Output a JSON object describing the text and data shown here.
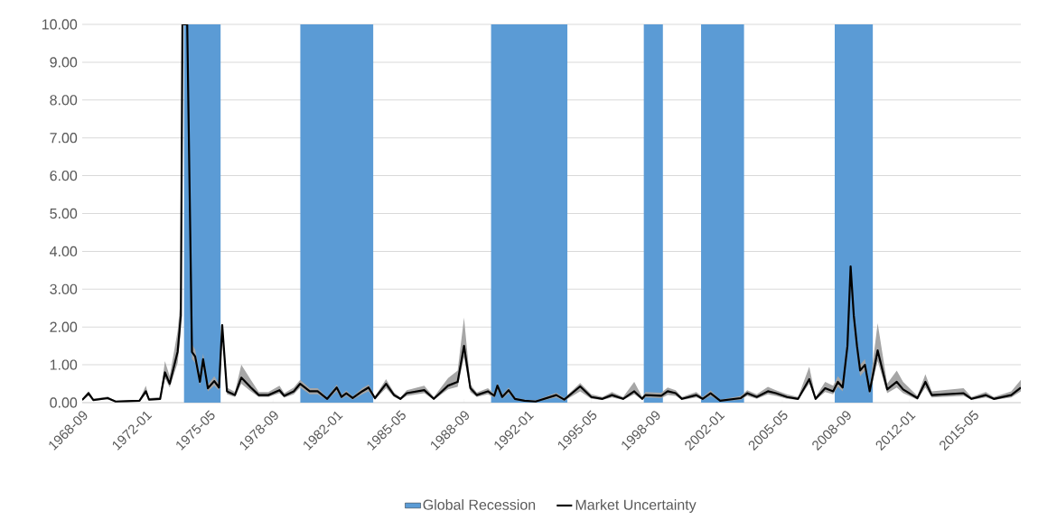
{
  "chart_data": {
    "type": "line",
    "x": [
      "1968-09",
      "1969-01",
      "1969-04",
      "1970-01",
      "1970-06",
      "1971-01",
      "1971-09",
      "1972-01",
      "1972-03",
      "1972-10",
      "1973-01",
      "1973-04",
      "1973-09",
      "1973-11",
      "1973-12",
      "1974-03",
      "1974-06",
      "1974-08",
      "1974-11",
      "1975-01",
      "1975-04",
      "1975-08",
      "1975-11",
      "1976-01",
      "1976-04",
      "1976-09",
      "1977-01",
      "1977-07",
      "1977-12",
      "1978-06",
      "1979-01",
      "1979-04",
      "1979-10",
      "1980-02",
      "1980-08",
      "1981-01",
      "1981-07",
      "1982-01",
      "1982-04",
      "1982-07",
      "1982-11",
      "1983-05",
      "1983-09",
      "1984-01",
      "1984-08",
      "1985-01",
      "1985-05",
      "1985-09",
      "1986-08",
      "1987-02",
      "1987-11",
      "1988-05",
      "1988-09",
      "1989-01",
      "1989-05",
      "1989-12",
      "1990-04",
      "1990-06",
      "1990-09",
      "1991-01",
      "1991-05",
      "1991-11",
      "1992-06",
      "1993-07",
      "1993-12",
      "1994-10",
      "1995-05",
      "1995-12",
      "1996-06",
      "1997-01",
      "1997-08",
      "1998-01",
      "1998-03",
      "1999-01",
      "1999-05",
      "1999-10",
      "2000-02",
      "2000-11",
      "2001-03",
      "2001-08",
      "2002-02",
      "2003-03",
      "2003-07",
      "2004-01",
      "2004-08",
      "2005-01",
      "2005-08",
      "2006-03",
      "2006-10",
      "2007-02",
      "2007-08",
      "2008-01",
      "2008-04",
      "2008-07",
      "2008-10",
      "2008-12",
      "2009-02",
      "2009-04",
      "2009-06",
      "2009-09",
      "2009-12",
      "2010-05",
      "2010-11",
      "2011-05",
      "2011-09",
      "2012-06",
      "2012-11",
      "2013-03",
      "2014-11",
      "2015-04",
      "2016-01",
      "2016-06",
      "2017-05",
      "2017-11"
    ],
    "series": [
      {
        "name": "Market Uncertainty",
        "color": "#000000",
        "values": [
          0.07,
          0.25,
          0.07,
          0.12,
          0.03,
          0.04,
          0.05,
          0.3,
          0.08,
          0.1,
          0.8,
          0.5,
          1.35,
          2.3,
          10,
          10,
          1.34,
          1.22,
          0.55,
          1.15,
          0.38,
          0.57,
          0.4,
          2.05,
          0.3,
          0.2,
          0.66,
          0.4,
          0.2,
          0.2,
          0.33,
          0.18,
          0.3,
          0.5,
          0.3,
          0.3,
          0.1,
          0.4,
          0.15,
          0.25,
          0.12,
          0.3,
          0.4,
          0.12,
          0.5,
          0.2,
          0.1,
          0.25,
          0.33,
          0.1,
          0.45,
          0.55,
          1.5,
          0.38,
          0.2,
          0.3,
          0.18,
          0.45,
          0.15,
          0.33,
          0.1,
          0.05,
          0.03,
          0.2,
          0.08,
          0.43,
          0.15,
          0.1,
          0.2,
          0.1,
          0.3,
          0.1,
          0.2,
          0.18,
          0.3,
          0.25,
          0.1,
          0.2,
          0.1,
          0.25,
          0.05,
          0.12,
          0.25,
          0.15,
          0.3,
          0.25,
          0.15,
          0.1,
          0.62,
          0.1,
          0.38,
          0.3,
          0.55,
          0.4,
          1.5,
          3.6,
          2.3,
          1.5,
          0.85,
          1.0,
          0.3,
          1.38,
          0.35,
          0.55,
          0.35,
          0.12,
          0.55,
          0.2,
          0.25,
          0.1,
          0.2,
          0.1,
          0.2,
          0.4
        ],
        "lower": [
          0.05,
          0.18,
          0.05,
          0.09,
          0.02,
          0.03,
          0.03,
          0.22,
          0.06,
          0.07,
          0.65,
          0.4,
          1.05,
          1.9,
          10,
          10,
          1.15,
          1.05,
          0.45,
          0.95,
          0.3,
          0.45,
          0.32,
          1.8,
          0.22,
          0.15,
          0.5,
          0.3,
          0.15,
          0.15,
          0.25,
          0.13,
          0.22,
          0.4,
          0.22,
          0.22,
          0.07,
          0.3,
          0.1,
          0.18,
          0.08,
          0.22,
          0.3,
          0.08,
          0.38,
          0.15,
          0.07,
          0.18,
          0.25,
          0.07,
          0.35,
          0.42,
          1.2,
          0.28,
          0.15,
          0.22,
          0.13,
          0.35,
          0.1,
          0.25,
          0.07,
          0.03,
          0.02,
          0.14,
          0.05,
          0.3,
          0.1,
          0.07,
          0.14,
          0.07,
          0.22,
          0.07,
          0.14,
          0.12,
          0.2,
          0.18,
          0.07,
          0.14,
          0.07,
          0.18,
          0.03,
          0.08,
          0.18,
          0.1,
          0.22,
          0.18,
          0.1,
          0.07,
          0.5,
          0.07,
          0.28,
          0.22,
          0.42,
          0.3,
          1.25,
          3.3,
          2.0,
          1.3,
          0.7,
          0.85,
          0.22,
          1.1,
          0.25,
          0.4,
          0.25,
          0.08,
          0.4,
          0.14,
          0.18,
          0.07,
          0.14,
          0.07,
          0.14,
          0.3
        ],
        "upper": [
          0.1,
          0.3,
          0.1,
          0.16,
          0.05,
          0.06,
          0.07,
          0.45,
          0.12,
          0.15,
          1.1,
          0.7,
          1.9,
          2.8,
          10,
          10,
          1.55,
          1.4,
          0.7,
          1.3,
          0.48,
          0.7,
          0.5,
          2.1,
          0.4,
          0.28,
          1.0,
          0.6,
          0.28,
          0.28,
          0.45,
          0.25,
          0.4,
          0.6,
          0.38,
          0.38,
          0.14,
          0.48,
          0.2,
          0.32,
          0.16,
          0.38,
          0.48,
          0.16,
          0.62,
          0.27,
          0.14,
          0.33,
          0.45,
          0.15,
          0.65,
          0.85,
          2.25,
          0.48,
          0.27,
          0.38,
          0.24,
          0.52,
          0.2,
          0.4,
          0.14,
          0.08,
          0.06,
          0.26,
          0.12,
          0.52,
          0.22,
          0.15,
          0.28,
          0.15,
          0.55,
          0.15,
          0.28,
          0.26,
          0.4,
          0.33,
          0.15,
          0.28,
          0.15,
          0.32,
          0.08,
          0.18,
          0.33,
          0.22,
          0.42,
          0.33,
          0.22,
          0.15,
          0.95,
          0.15,
          0.55,
          0.45,
          0.7,
          0.55,
          1.8,
          3.65,
          2.5,
          1.7,
          1.0,
          1.15,
          0.4,
          2.1,
          0.5,
          0.85,
          0.55,
          0.18,
          0.75,
          0.3,
          0.38,
          0.15,
          0.28,
          0.15,
          0.3,
          0.6
        ]
      }
    ],
    "xlim": [
      "1968-09",
      "2017-11"
    ],
    "xticks": [
      "1968-09",
      "1972-01",
      "1975-05",
      "1978-09",
      "1982-01",
      "1985-05",
      "1988-09",
      "1992-01",
      "1995-05",
      "1998-09",
      "2002-01",
      "2005-05",
      "2008-09",
      "2012-01",
      "2015-05"
    ],
    "ylim": [
      0,
      10
    ],
    "yticks": [
      {
        "value": 0,
        "label": "0.00"
      },
      {
        "value": 1,
        "label": "1.00"
      },
      {
        "value": 2,
        "label": "2.00"
      },
      {
        "value": 3,
        "label": "3.00"
      },
      {
        "value": 4,
        "label": "4.00"
      },
      {
        "value": 5,
        "label": "5.00"
      },
      {
        "value": 6,
        "label": "6.00"
      },
      {
        "value": 7,
        "label": "7.00"
      },
      {
        "value": 8,
        "label": "8.00"
      },
      {
        "value": 9,
        "label": "9.00"
      },
      {
        "value": 10,
        "label": "10.00"
      }
    ],
    "bands": [
      {
        "axis": "x",
        "from": "1974-01",
        "to": "1975-12",
        "label": "Global Recession",
        "color": "#5b9bd5"
      },
      {
        "axis": "x",
        "from": "1980-02",
        "to": "1983-12",
        "color": "#5b9bd5"
      },
      {
        "axis": "x",
        "from": "1990-02",
        "to": "1994-02",
        "color": "#5b9bd5"
      },
      {
        "axis": "x",
        "from": "1998-02",
        "to": "1999-02",
        "color": "#5b9bd5"
      },
      {
        "axis": "x",
        "from": "2001-02",
        "to": "2003-05",
        "color": "#5b9bd5"
      },
      {
        "axis": "x",
        "from": "2008-02",
        "to": "2010-02",
        "color": "#5b9bd5"
      }
    ],
    "grid": "y",
    "legend": "bottom"
  }
}
